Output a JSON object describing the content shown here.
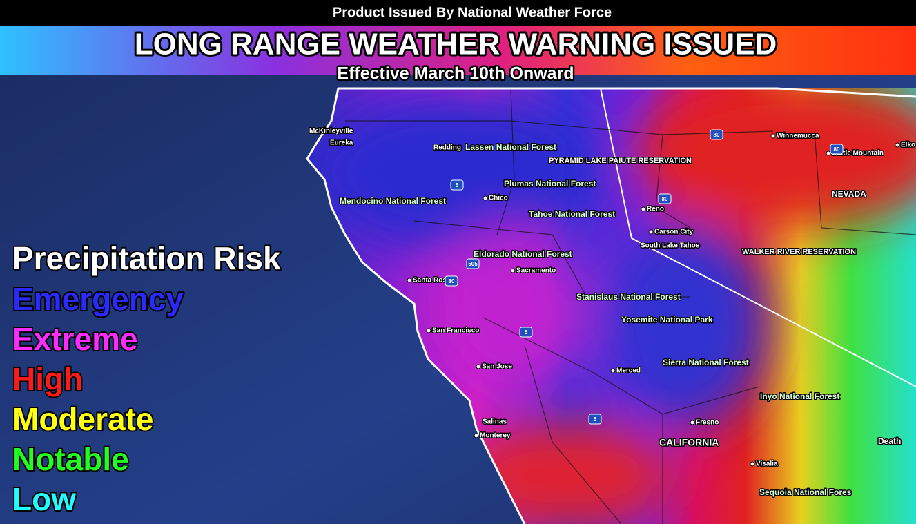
{
  "header": {
    "issuer": "Product Issued By National Weather Force",
    "title": "LONG RANGE WEATHER WARNING ISSUED",
    "subtitle": "Effective March 10th Onward"
  },
  "legend": {
    "title": "Precipitation Risk",
    "levels": [
      "Emergency",
      "Extreme",
      "High",
      "Moderate",
      "Notable",
      "Low"
    ]
  },
  "places": [
    "McKinleyville",
    "Eureka",
    "Redding",
    "Lassen National Forest",
    "PYRAMID LAKE PAIUTE RESERVATION",
    "Winnemucca",
    "Battle Mountain",
    "Elko",
    "Plumas National Forest",
    "Chico",
    "Mendocino National Forest",
    "NEVADA",
    "Reno",
    "Tahoe National Forest",
    "Carson City",
    "South Lake Tahoe",
    "WALKER RIVER RESERVATION",
    "Eldorado National Forest",
    "Sacramento",
    "Santa Rosa",
    "Stanislaus National Forest",
    "Yosemite National Park",
    "San Francisco",
    "San Jose",
    "Merced",
    "Sierra National Forest",
    "Inyo National Forest",
    "Salinas",
    "Monterey",
    "Fresno",
    "CALIFORNIA",
    "Visalia",
    "Death",
    "Sequoia National Fores"
  ],
  "highways": [
    "5",
    "505",
    "80",
    "5",
    "5",
    "80",
    "80",
    "80"
  ]
}
